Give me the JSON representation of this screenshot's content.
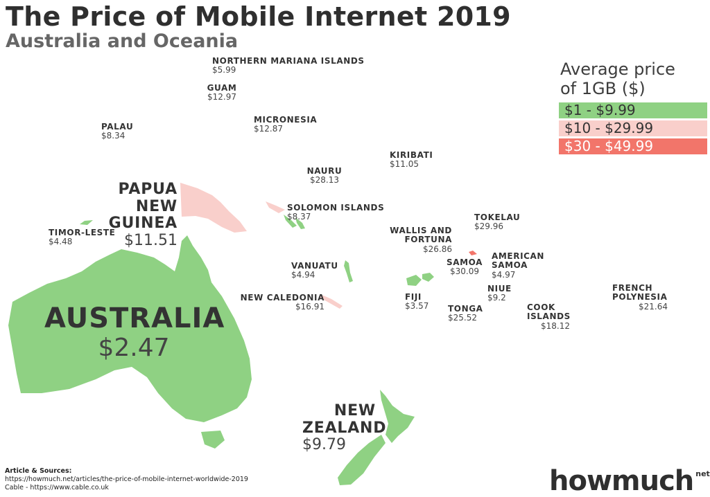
{
  "title": "The Price of Mobile Internet 2019",
  "subtitle": "Australia and Oceania",
  "legend": {
    "title": "Average price\nof 1GB ($)",
    "items": [
      {
        "label": "$1 - $9.99",
        "color": "#8fd183"
      },
      {
        "label": "$10 - $29.99",
        "color": "#f9cfcb"
      },
      {
        "label": "$30 - $49.99",
        "color": "#f2756a"
      }
    ]
  },
  "countries": [
    {
      "name": "AUSTRALIA",
      "price": "$2.47"
    },
    {
      "name": "PAPUA\nNEW GUINEA",
      "price": "$11.51"
    },
    {
      "name": "NEW\nZEALAND",
      "price": "$9.79"
    },
    {
      "name": "NORTHERN MARIANA ISLANDS",
      "price": "$5.99"
    },
    {
      "name": "GUAM",
      "price": "$12.97"
    },
    {
      "name": "PALAU",
      "price": "$8.34"
    },
    {
      "name": "MICRONESIA",
      "price": "$12.87"
    },
    {
      "name": "KIRIBATI",
      "price": "$11.05"
    },
    {
      "name": "NAURU",
      "price": "$28.13"
    },
    {
      "name": "SOLOMON ISLANDS",
      "price": "$8.37"
    },
    {
      "name": "TIMOR-LESTE",
      "price": "$4.48"
    },
    {
      "name": "TOKELAU",
      "price": "$29.96"
    },
    {
      "name": "WALLIS AND\nFORTUNA",
      "price": "$26.86"
    },
    {
      "name": "AMERICAN\nSAMOA",
      "price": "$4.97"
    },
    {
      "name": "SAMOA",
      "price": "$30.09"
    },
    {
      "name": "VANUATU",
      "price": "$4.94"
    },
    {
      "name": "NIUE",
      "price": "$9.2"
    },
    {
      "name": "NEW CALEDONIA",
      "price": "$16.91"
    },
    {
      "name": "FIJI",
      "price": "$3.57"
    },
    {
      "name": "TONGA",
      "price": "$25.52"
    },
    {
      "name": "COOK\nISLANDS",
      "price": "$18.12"
    },
    {
      "name": "FRENCH\nPOLYNESIA",
      "price": "$21.64"
    }
  ],
  "sources": {
    "heading": "Article & Sources:",
    "line1": "https://howmuch.net/articles/the-price-of-mobile-internet-worldwide-2019",
    "line2": "Cable - https://www.cable.co.uk"
  },
  "logo": {
    "main": "howmuch",
    "suffix": "net"
  }
}
